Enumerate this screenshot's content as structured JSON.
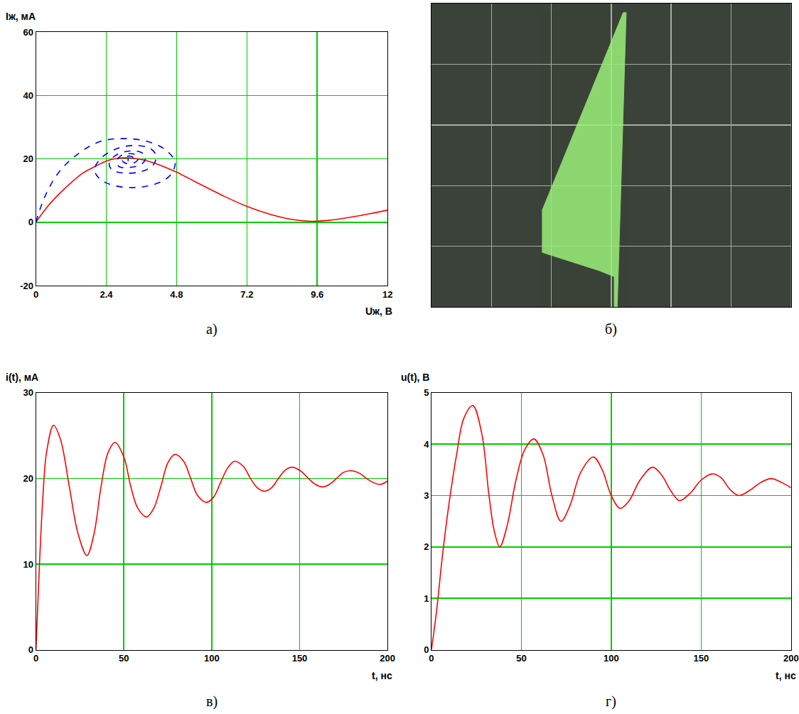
{
  "chart_data": [
    {
      "label": "а)",
      "type": "line",
      "x_label": "Uж, В",
      "y_label": "Iж, мА",
      "xlim": [
        0,
        12
      ],
      "xticks": [
        0,
        2.4,
        4.8,
        7.2,
        9.6,
        12
      ],
      "ylim": [
        -20,
        60
      ],
      "yticks": [
        -20,
        0,
        20,
        40,
        60
      ],
      "grid": true,
      "series": [
        {
          "color": "#ff0000",
          "line_style": "solid",
          "x": [
            0,
            0.4,
            0.8,
            1.2,
            1.6,
            2.0,
            2.4,
            2.8,
            3.2,
            3.6,
            4.0,
            4.8,
            5.6,
            6.4,
            7.2,
            8.0,
            8.8,
            9.4,
            10,
            10.8,
            11.4,
            12
          ],
          "values": [
            0,
            5,
            9,
            12.5,
            15.5,
            17.5,
            19.3,
            20.2,
            20.3,
            19.8,
            18.8,
            15.8,
            12,
            8.3,
            5,
            2.5,
            0.8,
            0.3,
            0.6,
            1.7,
            2.7,
            3.8
          ]
        },
        {
          "color": "#0000ff",
          "line_style": "dashed",
          "x": [
            0,
            0.3,
            0.8,
            1.5,
            2.2,
            3.0,
            3.8,
            4.4,
            4.75,
            4.6,
            4.2,
            3.5,
            2.7,
            2.2,
            2.0,
            2.2,
            2.7,
            3.3,
            3.9,
            4.1,
            4.0,
            3.6,
            3.0,
            2.6,
            2.5,
            2.7,
            3.2,
            3.6,
            3.75,
            3.6,
            3.2,
            2.85,
            2.75,
            2.9,
            3.3,
            3.5,
            3.4,
            3.1,
            2.95,
            3.1,
            3.3,
            3.3,
            3.15,
            3.15
          ],
          "values": [
            0,
            8,
            16,
            22,
            25.5,
            26.4,
            25.5,
            23,
            19,
            15,
            12.5,
            11,
            11.5,
            13.5,
            16.5,
            20,
            23,
            24.2,
            23.3,
            21,
            18,
            16,
            15.5,
            16.5,
            18.5,
            21,
            22.5,
            22,
            20.5,
            18.3,
            17.3,
            17.5,
            19,
            21,
            21.6,
            20.5,
            19,
            18.5,
            19.5,
            20.8,
            20.6,
            19.7,
            19.4,
            20.1
          ]
        }
      ]
    },
    {
      "label": "б)",
      "type": "area",
      "xlim": [
        0,
        6
      ],
      "xticks": [
        0,
        1,
        2,
        3,
        4,
        5,
        6
      ],
      "ylim": [
        0,
        5
      ],
      "yticks": [
        0,
        1,
        2,
        3,
        4,
        5
      ],
      "grid": true,
      "tick_labels": false,
      "series": [
        {
          "color": "#9cf07a",
          "x": [
            3.2,
            1.85,
            1.85,
            2.8,
            3.05,
            3.05,
            3.1,
            3.25,
            3.2
          ],
          "values": [
            4.85,
            1.6,
            0.9,
            0.6,
            0.5,
            0,
            0,
            4.85,
            4.85
          ]
        }
      ]
    },
    {
      "label": "в)",
      "type": "line",
      "x_label": "t, нс",
      "y_label": "i(t), мА",
      "xlim": [
        0,
        200
      ],
      "xticks": [
        0,
        50,
        100,
        150,
        200
      ],
      "ylim": [
        0,
        30
      ],
      "yticks": [
        0,
        10,
        20,
        30
      ],
      "grid": true,
      "series": [
        {
          "color": "#ff0000",
          "line_style": "solid",
          "x": [
            0,
            2,
            4,
            6,
            10,
            14,
            19,
            24,
            29,
            33,
            37,
            41,
            45,
            50,
            54,
            58,
            63,
            67,
            71,
            75,
            79,
            84,
            88,
            92,
            97,
            101,
            105,
            109,
            113,
            118,
            122,
            126,
            130,
            134,
            138,
            142,
            146,
            151,
            155,
            159,
            163,
            167,
            171,
            175,
            179,
            184,
            188,
            192,
            196,
            200
          ],
          "values": [
            0,
            10,
            18,
            23,
            26.2,
            24.5,
            19,
            13.5,
            11,
            13.5,
            19,
            23,
            24.2,
            22.5,
            19,
            16.5,
            15.5,
            16.5,
            19,
            21.8,
            22.8,
            22,
            20,
            18,
            17.2,
            17.8,
            19.5,
            21.2,
            22,
            21.4,
            20,
            18.9,
            18.5,
            18.9,
            20,
            21,
            21.3,
            20.8,
            20,
            19.3,
            19,
            19.3,
            20,
            20.7,
            20.9,
            20.6,
            20,
            19.5,
            19.3,
            19.7
          ]
        }
      ]
    },
    {
      "label": "г)",
      "type": "line",
      "x_label": "t, нс",
      "y_label": "u(t), В",
      "xlim": [
        0,
        200
      ],
      "xticks": [
        0,
        50,
        100,
        150,
        200
      ],
      "ylim": [
        0,
        5
      ],
      "yticks": [
        0,
        1,
        2,
        3,
        4,
        5
      ],
      "grid": true,
      "series": [
        {
          "color": "#ff0000",
          "line_style": "solid",
          "x": [
            0,
            3,
            6,
            10,
            14,
            18,
            23,
            28,
            32,
            35,
            38,
            42,
            47,
            52,
            57,
            62,
            67,
            72,
            77,
            83,
            90,
            95,
            100,
            105,
            110,
            116,
            123,
            128,
            133,
            138,
            144,
            150,
            156,
            161,
            166,
            171,
            177,
            183,
            189,
            195,
            200
          ],
          "values": [
            0,
            0.8,
            1.8,
            2.9,
            3.8,
            4.5,
            4.75,
            4.2,
            3.0,
            2.3,
            2.0,
            2.4,
            3.3,
            3.9,
            4.1,
            3.8,
            3.0,
            2.5,
            2.8,
            3.45,
            3.75,
            3.5,
            3.0,
            2.75,
            2.9,
            3.3,
            3.55,
            3.4,
            3.1,
            2.9,
            3.05,
            3.3,
            3.42,
            3.35,
            3.12,
            3.0,
            3.1,
            3.25,
            3.33,
            3.25,
            3.15
          ]
        }
      ]
    }
  ]
}
